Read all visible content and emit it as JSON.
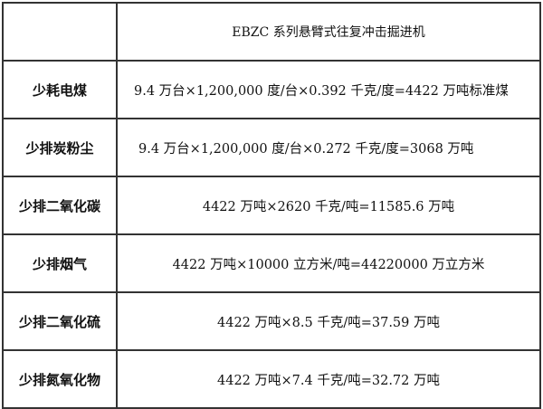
{
  "table": {
    "header": [
      "",
      "EBZC 系列悬臂式往复冲击掘进机"
    ],
    "rows": [
      {
        "label": "少耗电煤",
        "value": "9.4 万台×1,200,000 度/台×0.392 千克/度=4422 万吨标准煤"
      },
      {
        "label": "少排炭粉尘",
        "value": "9.4 万台×1,200,000 度/台×0.272 千克/度=3068 万吨"
      },
      {
        "label": "少排二氧化碳",
        "value": "4422 万吨×2620 千克/吨=11585.6 万吨"
      },
      {
        "label": "少排烟气",
        "value": "4422 万吨×10000 立方米/吨=44220000 万立方米"
      },
      {
        "label": "少排二氧化硫",
        "value": "4422 万吨×8.5 千克/吨=37.59 万吨"
      },
      {
        "label": "少排氮氧化物",
        "value": "4422 万吨×7.4 千克/吨=32.72 万吨"
      }
    ]
  }
}
